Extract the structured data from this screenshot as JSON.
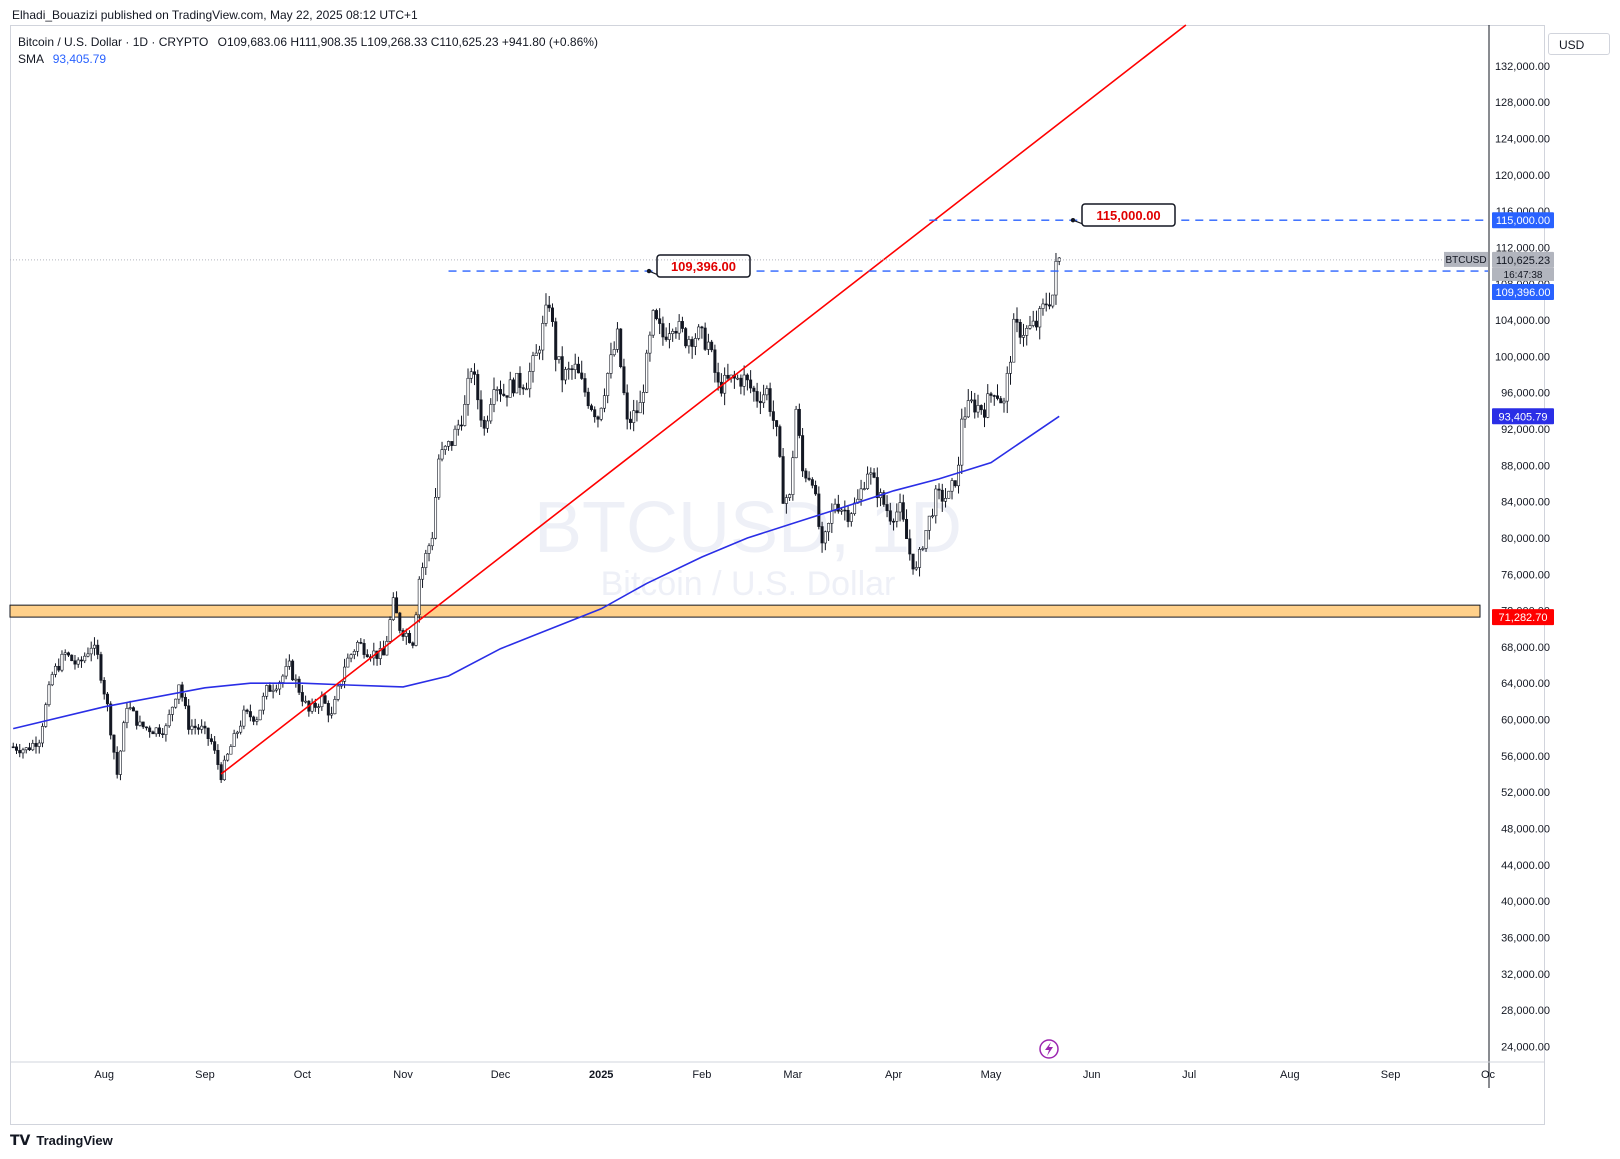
{
  "header": {
    "published": "Elhadi_Bouazizi published on TradingView.com, May 22, 2025 08:12 UTC+1"
  },
  "legend": {
    "symbol": "Bitcoin / U.S. Dollar · 1D · CRYPTO",
    "ohlc": "O109,683.06 H111,908.35 L109,268.33 C110,625.23 +941.80 (+0.86%)",
    "sma_label": "SMA",
    "sma_value": "93,405.79"
  },
  "currency_button": "USD",
  "watermark": {
    "ticker": "BTCUSD, 1D",
    "name": "Bitcoin / U.S. Dollar"
  },
  "footer": {
    "brand": "TradingView"
  },
  "colors": {
    "up_candle": "#131722",
    "down_candle": "#131722",
    "sma": "#2a2ee6",
    "trendline": "#ff0000",
    "dashed_level": "#2962ff",
    "zone_fill": "#ffd08a",
    "zone_label_bg": "#ff0000",
    "price_label_bg": "#2962ff",
    "current_label_bg": "#b2b5be"
  },
  "chart_data": {
    "type": "candlestick",
    "symbol": "BTCUSD",
    "timeframe": "1D",
    "y_scale": "linear",
    "ylim": [
      22500,
      136500
    ],
    "y_ticks": [
      "24,000.00",
      "28,000.00",
      "32,000.00",
      "36,000.00",
      "40,000.00",
      "44,000.00",
      "48,000.00",
      "52,000.00",
      "56,000.00",
      "60,000.00",
      "64,000.00",
      "68,000.00",
      "72,000.00",
      "76,000.00",
      "80,000.00",
      "84,000.00",
      "88,000.00",
      "92,000.00",
      "96,000.00",
      "100,000.00",
      "104,000.00",
      "108,000.00",
      "112,000.00",
      "116,000.00",
      "120,000.00",
      "124,000.00",
      "128,000.00",
      "132,000.00"
    ],
    "x_ticks": [
      "Aug",
      "Sep",
      "Oct",
      "Nov",
      "Dec",
      "2025",
      "Feb",
      "Mar",
      "Apr",
      "May",
      "Jun",
      "Jul",
      "Aug",
      "Sep",
      "Oc"
    ],
    "x_tick_dates": [
      "2024-08-01",
      "2024-09-01",
      "2024-10-01",
      "2024-11-01",
      "2024-12-01",
      "2025-01-01",
      "2025-02-01",
      "2025-03-01",
      "2025-04-01",
      "2025-05-01",
      "2025-06-01",
      "2025-07-01",
      "2025-08-01",
      "2025-09-01",
      "2025-10-01"
    ],
    "x_range": [
      "2024-07-03",
      "2025-10-01"
    ],
    "close_series": [
      [
        "2024-07-04",
        57000
      ],
      [
        "2024-07-08",
        56700
      ],
      [
        "2024-07-12",
        57900
      ],
      [
        "2024-07-16",
        64900
      ],
      [
        "2024-07-20",
        67200
      ],
      [
        "2024-07-24",
        65900
      ],
      [
        "2024-07-28",
        68200
      ],
      [
        "2024-07-30",
        66800
      ],
      [
        "2024-08-02",
        61400
      ],
      [
        "2024-08-05",
        54000
      ],
      [
        "2024-08-08",
        61700
      ],
      [
        "2024-08-12",
        59300
      ],
      [
        "2024-08-16",
        58900
      ],
      [
        "2024-08-20",
        59000
      ],
      [
        "2024-08-24",
        64100
      ],
      [
        "2024-08-27",
        59400
      ],
      [
        "2024-08-31",
        58900
      ],
      [
        "2024-09-03",
        57500
      ],
      [
        "2024-09-06",
        53900
      ],
      [
        "2024-09-09",
        57000
      ],
      [
        "2024-09-13",
        60500
      ],
      [
        "2024-09-17",
        60300
      ],
      [
        "2024-09-20",
        63200
      ],
      [
        "2024-09-24",
        64300
      ],
      [
        "2024-09-27",
        65800
      ],
      [
        "2024-09-30",
        63300
      ],
      [
        "2024-10-03",
        60800
      ],
      [
        "2024-10-07",
        62300
      ],
      [
        "2024-10-10",
        60300
      ],
      [
        "2024-10-14",
        66000
      ],
      [
        "2024-10-18",
        68400
      ],
      [
        "2024-10-22",
        67400
      ],
      [
        "2024-10-26",
        67000
      ],
      [
        "2024-10-29",
        72700
      ],
      [
        "2024-10-31",
        70200
      ],
      [
        "2024-11-04",
        68700
      ],
      [
        "2024-11-06",
        75600
      ],
      [
        "2024-11-10",
        80400
      ],
      [
        "2024-11-12",
        88700
      ],
      [
        "2024-11-16",
        90600
      ],
      [
        "2024-11-20",
        94300
      ],
      [
        "2024-11-22",
        98900
      ],
      [
        "2024-11-26",
        91900
      ],
      [
        "2024-11-29",
        97400
      ],
      [
        "2024-12-02",
        95900
      ],
      [
        "2024-12-05",
        97000
      ],
      [
        "2024-12-09",
        97300
      ],
      [
        "2024-12-12",
        100000
      ],
      [
        "2024-12-16",
        106100
      ],
      [
        "2024-12-18",
        100200
      ],
      [
        "2024-12-20",
        97800
      ],
      [
        "2024-12-24",
        98600
      ],
      [
        "2024-12-28",
        95300
      ],
      [
        "2024-12-31",
        93400
      ],
      [
        "2025-01-03",
        98100
      ],
      [
        "2025-01-06",
        102100
      ],
      [
        "2025-01-09",
        92500
      ],
      [
        "2025-01-13",
        94500
      ],
      [
        "2025-01-17",
        104100
      ],
      [
        "2025-01-20",
        102200
      ],
      [
        "2025-01-23",
        103900
      ],
      [
        "2025-01-27",
        102000
      ],
      [
        "2025-01-31",
        102400
      ],
      [
        "2025-02-03",
        101400
      ],
      [
        "2025-02-06",
        96600
      ],
      [
        "2025-02-10",
        97400
      ],
      [
        "2025-02-14",
        97500
      ],
      [
        "2025-02-18",
        95500
      ],
      [
        "2025-02-21",
        96200
      ],
      [
        "2025-02-24",
        91400
      ],
      [
        "2025-02-26",
        84700
      ],
      [
        "2025-02-28",
        84300
      ],
      [
        "2025-03-02",
        94200
      ],
      [
        "2025-03-04",
        87300
      ],
      [
        "2025-03-07",
        86700
      ],
      [
        "2025-03-10",
        78600
      ],
      [
        "2025-03-14",
        84000
      ],
      [
        "2025-03-18",
        82700
      ],
      [
        "2025-03-21",
        84000
      ],
      [
        "2025-03-24",
        87500
      ],
      [
        "2025-03-28",
        84400
      ],
      [
        "2025-03-31",
        82500
      ],
      [
        "2025-04-03",
        83100
      ],
      [
        "2025-04-06",
        78300
      ],
      [
        "2025-04-08",
        76300
      ],
      [
        "2025-04-10",
        79600
      ],
      [
        "2025-04-14",
        84500
      ],
      [
        "2025-04-18",
        84500
      ],
      [
        "2025-04-21",
        87500
      ],
      [
        "2025-04-22",
        93400
      ],
      [
        "2025-04-25",
        94700
      ],
      [
        "2025-04-29",
        94300
      ],
      [
        "2025-05-02",
        96500
      ],
      [
        "2025-05-05",
        94700
      ],
      [
        "2025-05-08",
        103000
      ],
      [
        "2025-05-12",
        102800
      ],
      [
        "2025-05-15",
        103500
      ],
      [
        "2025-05-18",
        106000
      ],
      [
        "2025-05-20",
        106800
      ],
      [
        "2025-05-21",
        109683
      ],
      [
        "2025-05-22",
        110625
      ]
    ],
    "sma_series": [
      [
        "2024-07-04",
        59000
      ],
      [
        "2024-08-01",
        61400
      ],
      [
        "2024-09-01",
        63500
      ],
      [
        "2024-09-15",
        64000
      ],
      [
        "2024-10-01",
        64000
      ],
      [
        "2024-10-15",
        63800
      ],
      [
        "2024-11-01",
        63600
      ],
      [
        "2024-11-15",
        64800
      ],
      [
        "2024-12-01",
        67800
      ],
      [
        "2024-12-15",
        69800
      ],
      [
        "2025-01-01",
        72200
      ],
      [
        "2025-01-15",
        75000
      ],
      [
        "2025-02-01",
        77900
      ],
      [
        "2025-02-15",
        80000
      ],
      [
        "2025-03-01",
        81600
      ],
      [
        "2025-03-15",
        83200
      ],
      [
        "2025-04-01",
        85200
      ],
      [
        "2025-04-15",
        86500
      ],
      [
        "2025-05-01",
        88300
      ],
      [
        "2025-05-22",
        93405.79
      ]
    ],
    "trendline": {
      "from": [
        "2024-09-06",
        54000
      ],
      "to": [
        "2025-06-30",
        136500
      ]
    },
    "horizontal_levels": [
      {
        "price": 109396.0,
        "label": "109,396.00",
        "from": "2024-11-15",
        "style": "dashed",
        "callout": "109,396.00"
      },
      {
        "price": 115000.0,
        "label": "115,000.00",
        "from": "2025-04-12",
        "style": "dashed",
        "callout": "115,000.00"
      }
    ],
    "zone": {
      "low": 71282.7,
      "high": 72600,
      "label": "71,282.70"
    },
    "current_price": {
      "value": 110625.23,
      "label": "110,625.23",
      "ticker": "BTCUSD",
      "countdown": "16:47:38"
    },
    "sma_label": "93,405.79"
  }
}
